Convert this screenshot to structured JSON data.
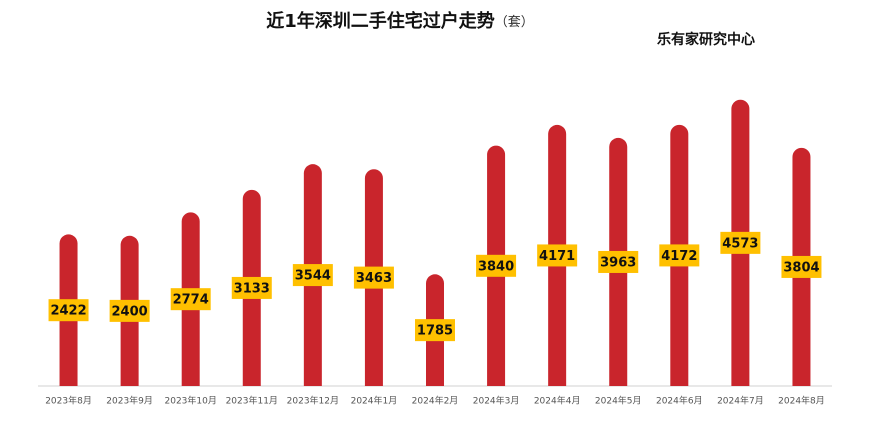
{
  "chart_data": {
    "type": "bar",
    "title": "近1年深圳二手住宅过户走势",
    "unit": "（套）",
    "annotation": "乐有家研究中心",
    "categories": [
      "2023年8月",
      "2023年9月",
      "2023年10月",
      "2023年11月",
      "2023年12月",
      "2024年1月",
      "2024年2月",
      "2024年3月",
      "2024年4月",
      "2024年5月",
      "2024年6月",
      "2024年7月",
      "2024年8月"
    ],
    "values": [
      2422,
      2400,
      2774,
      3133,
      3544,
      3463,
      1785,
      3840,
      4171,
      3963,
      4172,
      4573,
      3804
    ],
    "color": "#c9252c",
    "label_color": "#ffc000",
    "ylim": [
      0,
      5000
    ]
  }
}
